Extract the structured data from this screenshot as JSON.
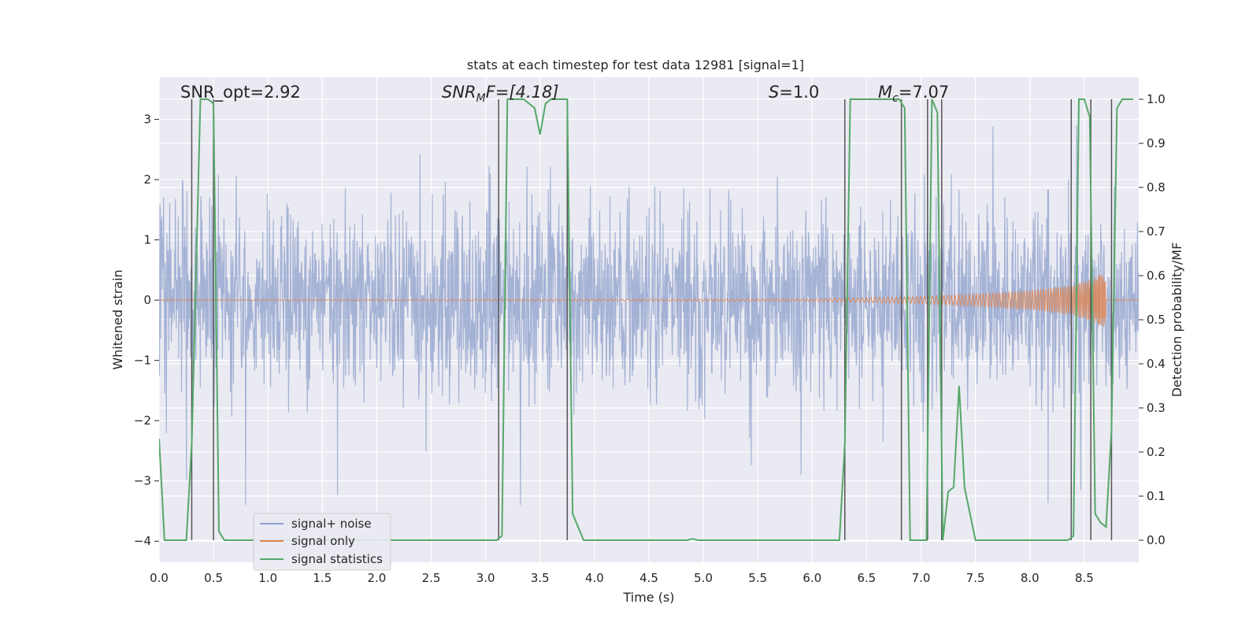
{
  "chart_data": {
    "type": "line",
    "title": "stats at each timestep for test data 12981 [signal=1]",
    "xlabel": "Time (s)",
    "ylabel": "Whitened strain",
    "ylabel_right": "Detection probability/MF",
    "xlim": [
      0.0,
      9.0
    ],
    "ylim": [
      -4.35,
      3.7
    ],
    "ylim_right": [
      -0.05,
      1.05
    ],
    "xticks": [
      0.0,
      0.5,
      1.0,
      1.5,
      2.0,
      2.5,
      3.0,
      3.5,
      4.0,
      4.5,
      5.0,
      5.5,
      6.0,
      6.5,
      7.0,
      7.5,
      8.0,
      8.5
    ],
    "xtick_labels": [
      "0.0",
      "0.5",
      "1.0",
      "1.5",
      "2.0",
      "2.5",
      "3.0",
      "3.5",
      "4.0",
      "4.5",
      "5.0",
      "5.5",
      "6.0",
      "6.5",
      "7.0",
      "7.5",
      "8.0",
      "8.5"
    ],
    "yticks": [
      -4,
      -3,
      -2,
      -1,
      0,
      1,
      2,
      3
    ],
    "ytick_labels": [
      "−4",
      "−3",
      "−2",
      "−1",
      "0",
      "1",
      "2",
      "3"
    ],
    "yticks_right": [
      0.0,
      0.1,
      0.2,
      0.3,
      0.4,
      0.5,
      0.6,
      0.7,
      0.8,
      0.9,
      1.0
    ],
    "ytick_labels_right": [
      "0.0",
      "0.1",
      "0.2",
      "0.3",
      "0.4",
      "0.5",
      "0.6",
      "0.7",
      "0.8",
      "0.9",
      "1.0"
    ],
    "annotations": {
      "snr_opt": "SNR_opt=2.92",
      "snr_mf_main": "SNR",
      "snr_mf_sub": "M",
      "snr_mf_rest": "F=[4.18]",
      "s_main": "S",
      "s_rest": "=1.0",
      "mc_main": "M",
      "mc_sub": "c",
      "mc_rest": "=7.07"
    },
    "legend": {
      "placement": "lower-left",
      "entries": [
        "signal+ noise",
        "signal only",
        "signal statistics"
      ]
    },
    "colors": {
      "noise": "#8c9fcb",
      "signal": "#dd8452",
      "stats": "#55a868",
      "vline": "#555555",
      "background": "#eaeaf2",
      "grid": "#ffffff"
    },
    "series": [
      {
        "name": "signal statistics",
        "axis": "right",
        "x": [
          0.0,
          0.05,
          0.25,
          0.3,
          0.38,
          0.45,
          0.5,
          0.55,
          0.6,
          1.0,
          1.5,
          2.0,
          2.5,
          3.0,
          3.1,
          3.15,
          3.2,
          3.25,
          3.3,
          3.35,
          3.4,
          3.45,
          3.5,
          3.55,
          3.6,
          3.75,
          3.8,
          3.9,
          4.0,
          4.5,
          4.85,
          4.9,
          4.95,
          5.0,
          5.5,
          6.0,
          6.25,
          6.3,
          6.35,
          6.4,
          6.5,
          6.8,
          6.85,
          6.9,
          6.95,
          7.0,
          7.05,
          7.1,
          7.15,
          7.2,
          7.25,
          7.3,
          7.35,
          7.4,
          7.5,
          7.55,
          8.0,
          8.35,
          8.4,
          8.45,
          8.5,
          8.55,
          8.6,
          8.65,
          8.7,
          8.75,
          8.8,
          8.85,
          8.9,
          8.95
        ],
        "values": [
          0.23,
          0.0,
          0.0,
          0.22,
          1.0,
          1.0,
          0.99,
          0.02,
          0.0,
          0.0,
          0.0,
          0.0,
          0.0,
          0.0,
          0.0,
          0.01,
          1.0,
          1.0,
          1.0,
          1.0,
          0.99,
          0.98,
          0.92,
          0.99,
          1.0,
          1.0,
          0.06,
          0.0,
          0.0,
          0.0,
          0.0,
          0.003,
          0.0,
          0.0,
          0.0,
          0.0,
          0.0,
          0.22,
          1.0,
          1.0,
          1.0,
          1.0,
          0.98,
          0.0,
          0.0,
          0.0,
          0.0,
          1.0,
          0.97,
          0.0,
          0.11,
          0.12,
          0.35,
          0.12,
          0.0,
          0.0,
          0.0,
          0.0,
          0.01,
          1.0,
          1.0,
          0.96,
          0.06,
          0.04,
          0.03,
          0.25,
          0.98,
          1.0,
          1.0,
          1.0
        ]
      },
      {
        "name": "signal only",
        "axis": "left",
        "description": "chirp growing from ~0 to about ±0.4 near t=8.7 s",
        "x": [
          0.0,
          6.0,
          7.0,
          7.5,
          8.0,
          8.4,
          8.6,
          8.68,
          8.75,
          9.0
        ],
        "values": [
          0.0,
          0.02,
          0.06,
          0.1,
          0.16,
          0.25,
          0.38,
          0.45,
          0.0,
          0.0
        ]
      },
      {
        "name": "signal+ noise",
        "axis": "left",
        "description": "whitened noise, bulk within about ±1.5, peaks near ±3.4",
        "x_range": [
          0.0,
          9.0
        ],
        "range": [
          -3.4,
          3.4
        ]
      }
    ],
    "vertical_lines": [
      0.3,
      0.5,
      3.12,
      3.75,
      6.3,
      6.82,
      7.06,
      7.19,
      8.38,
      8.56,
      8.75
    ]
  }
}
